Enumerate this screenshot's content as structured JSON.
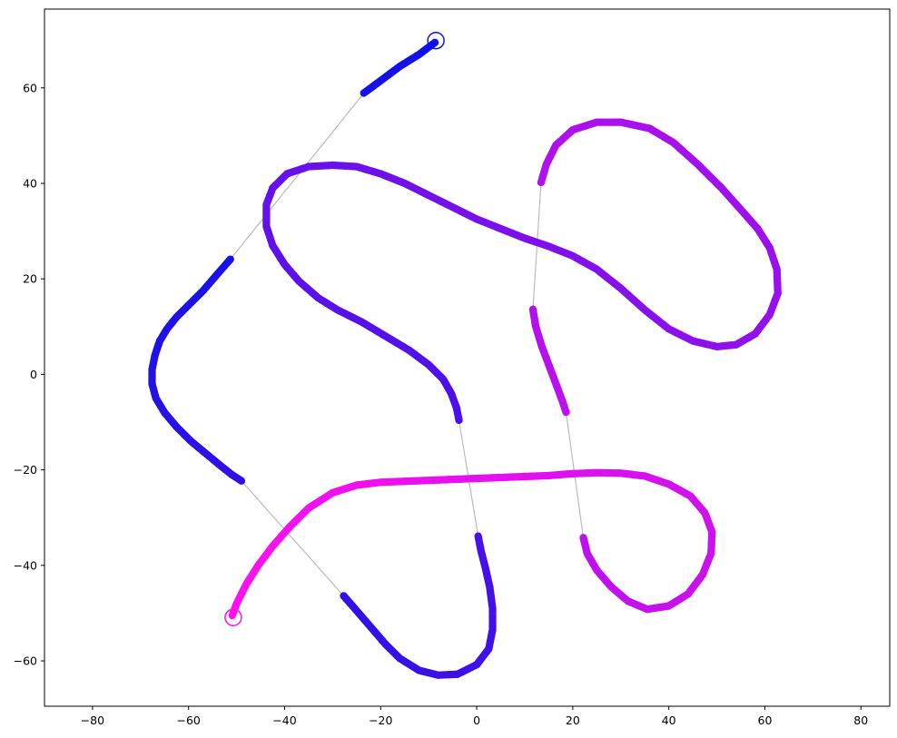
{
  "chart_data": {
    "type": "scatter",
    "title": "",
    "xlabel": "",
    "ylabel": "",
    "xlim": [
      -90,
      86
    ],
    "ylim": [
      -69.5,
      76.5
    ],
    "xticks": [
      -80,
      -60,
      -40,
      -20,
      0,
      20,
      40,
      60,
      80
    ],
    "yticks": [
      -60,
      -40,
      -20,
      0,
      20,
      40,
      60
    ],
    "grid": false,
    "legend": "none",
    "color_start": "#1010e8",
    "color_end": "#ff10f0",
    "connector_color": "#bbbbbb",
    "start_marker": {
      "x": -8.5,
      "y": 69.9,
      "color": "#1010e8"
    },
    "end_marker": {
      "x": -50.7,
      "y": -50.9,
      "color": "#ff10f0"
    },
    "segments": [
      {
        "points": [
          [
            -8.7,
            69.5
          ],
          [
            -12,
            67
          ],
          [
            -16,
            64.5
          ],
          [
            -20,
            61.5
          ],
          [
            -23.5,
            58.9
          ]
        ]
      },
      {
        "points": [
          [
            -51.3,
            24.1
          ],
          [
            -54,
            21
          ],
          [
            -57,
            17.5
          ],
          [
            -60,
            14.5
          ],
          [
            -62.5,
            12
          ],
          [
            -64.5,
            9.5
          ],
          [
            -66,
            7
          ],
          [
            -67,
            4
          ],
          [
            -67.6,
            1
          ],
          [
            -67.6,
            -2
          ],
          [
            -66.8,
            -5
          ],
          [
            -65,
            -8
          ],
          [
            -62.5,
            -11
          ],
          [
            -59.5,
            -14
          ],
          [
            -56.5,
            -16.5
          ],
          [
            -53.5,
            -19
          ],
          [
            -51,
            -21
          ],
          [
            -49,
            -22.3
          ]
        ]
      },
      {
        "points": [
          [
            -27.7,
            -46.4
          ],
          [
            -25,
            -49.5
          ],
          [
            -22,
            -53
          ],
          [
            -19,
            -56.5
          ],
          [
            -16,
            -59.5
          ],
          [
            -12,
            -62
          ],
          [
            -8,
            -63
          ],
          [
            -4,
            -62.8
          ],
          [
            0,
            -60.8
          ],
          [
            2.5,
            -57.5
          ],
          [
            3.3,
            -53.5
          ],
          [
            3.3,
            -49
          ],
          [
            2.7,
            -44.5
          ],
          [
            1.8,
            -40.5
          ],
          [
            0.9,
            -37
          ],
          [
            0.3,
            -33.9
          ]
        ]
      },
      {
        "points": [
          [
            -3.7,
            -9.6
          ],
          [
            -4.2,
            -7
          ],
          [
            -5.3,
            -4
          ],
          [
            -7,
            -1
          ],
          [
            -10,
            2
          ],
          [
            -14,
            5
          ],
          [
            -19,
            8
          ],
          [
            -24,
            11
          ],
          [
            -29,
            13.5
          ],
          [
            -33,
            16
          ],
          [
            -37,
            19.5
          ],
          [
            -40,
            23
          ],
          [
            -42.5,
            27
          ],
          [
            -43.8,
            31
          ],
          [
            -43.8,
            35.5
          ],
          [
            -42.5,
            39
          ],
          [
            -39.5,
            42
          ],
          [
            -35,
            43.5
          ],
          [
            -30,
            43.8
          ],
          [
            -25,
            43.5
          ],
          [
            -20,
            42
          ],
          [
            -15,
            40
          ],
          [
            -10,
            37.5
          ],
          [
            -5,
            35
          ],
          [
            0,
            32.5
          ],
          [
            5,
            30.5
          ],
          [
            10,
            28.5
          ],
          [
            15,
            26.8
          ],
          [
            20,
            24.8
          ],
          [
            25,
            22
          ],
          [
            30,
            18
          ],
          [
            35,
            13.5
          ],
          [
            40,
            9.5
          ],
          [
            45,
            7
          ],
          [
            50,
            5.8
          ],
          [
            54,
            6.2
          ],
          [
            58,
            8.5
          ],
          [
            61,
            12.5
          ],
          [
            62.7,
            17
          ],
          [
            62.5,
            22
          ],
          [
            61,
            26.5
          ],
          [
            58.5,
            30.5
          ],
          [
            55,
            34.5
          ],
          [
            51,
            39
          ],
          [
            46,
            44
          ],
          [
            41,
            48.5
          ],
          [
            36,
            51.5
          ],
          [
            30,
            52.8
          ],
          [
            25,
            52.8
          ],
          [
            20,
            51.2
          ],
          [
            16.5,
            48
          ],
          [
            14.5,
            44
          ],
          [
            13.4,
            40.2
          ]
        ]
      },
      {
        "points": [
          [
            11.7,
            13.6
          ],
          [
            12.3,
            10
          ],
          [
            13.5,
            6
          ],
          [
            15,
            2
          ],
          [
            16.5,
            -2
          ],
          [
            17.8,
            -5.5
          ],
          [
            18.6,
            -7.9
          ]
        ]
      },
      {
        "points": [
          [
            22.2,
            -34.2
          ],
          [
            23,
            -37.5
          ],
          [
            25,
            -41
          ],
          [
            28,
            -44.5
          ],
          [
            31.5,
            -47.5
          ],
          [
            35.5,
            -49.2
          ],
          [
            40,
            -48.5
          ],
          [
            44,
            -46
          ],
          [
            47,
            -42
          ],
          [
            48.8,
            -37.5
          ],
          [
            49,
            -33
          ],
          [
            47.5,
            -29
          ],
          [
            44.5,
            -25.5
          ],
          [
            40,
            -23
          ],
          [
            35,
            -21.3
          ],
          [
            30,
            -20.7
          ],
          [
            25,
            -20.6
          ],
          [
            20,
            -20.8
          ],
          [
            15,
            -21.2
          ],
          [
            10,
            -21.4
          ],
          [
            5,
            -21.6
          ],
          [
            0,
            -21.8
          ],
          [
            -5,
            -22
          ],
          [
            -10,
            -22.2
          ],
          [
            -15,
            -22.4
          ],
          [
            -20,
            -22.6
          ],
          [
            -25,
            -23.2
          ],
          [
            -30,
            -24.8
          ],
          [
            -35,
            -28
          ],
          [
            -39,
            -32
          ],
          [
            -42.5,
            -36
          ],
          [
            -45.5,
            -40
          ],
          [
            -48,
            -44
          ],
          [
            -50,
            -48
          ],
          [
            -50.9,
            -50.5
          ]
        ]
      }
    ]
  }
}
